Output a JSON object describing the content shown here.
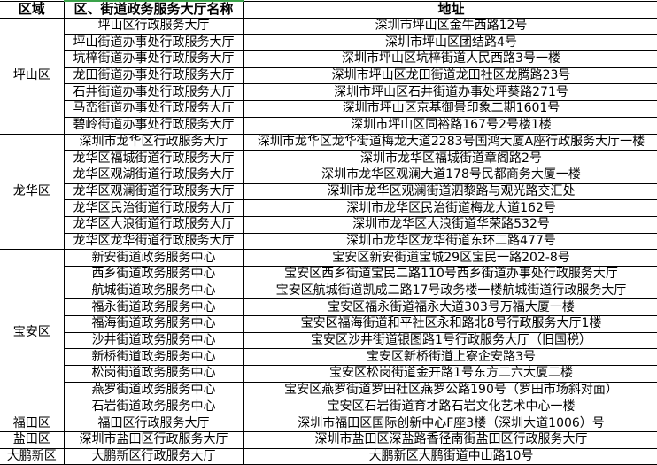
{
  "header": {
    "region": "区域",
    "name": "区、街道政务服务大厅名称",
    "address": "地址"
  },
  "groups": [
    {
      "region": "坪山区",
      "rows": [
        [
          "坪山区行政服务大厅",
          "深圳市坪山区金牛西路12号"
        ],
        [
          "坪山街道办事处行政服务大厅",
          "深圳市坪山区团结路4号"
        ],
        [
          "坑梓街道办事处行政服务大厅",
          "深圳市坪山区坑梓街道人民西路3号一楼"
        ],
        [
          "龙田街道办事处行政服务大厅",
          "深圳市坪山区龙田街道龙田社区龙腾路23号"
        ],
        [
          "石井街道办事处行政服务大厅",
          "深圳市坪山区石井街道办事处坪葵路271号"
        ],
        [
          "马峦街道办事处行政服务大厅",
          "深圳市坪山区京基御景印象二期1601号"
        ],
        [
          "碧岭街道办事处行政服务大厅",
          "深圳市坪山区同裕路167号2号楼1楼"
        ]
      ]
    },
    {
      "region": "龙华区",
      "rows": [
        [
          "深圳市龙华区行政服务大厅",
          "深圳市龙华区龙华街道梅龙大道2283号国鸿大厦A座行政服务大厅一楼"
        ],
        [
          "龙华区福城街道行政服务大厅",
          "深圳市龙华区福城街道章阁路2号"
        ],
        [
          "龙华区观湖街道行政服务大厅",
          "深圳市龙华区观澜大道178号民都商务大厦一楼"
        ],
        [
          "龙华区观澜街道行政服务大厅",
          "深圳市龙华区观澜街道泗黎路与观光路交汇处"
        ],
        [
          "龙华区民治街道行政服务大厅",
          "深圳市龙华区民治街道梅龙大道162号"
        ],
        [
          "龙华区大浪街道行政服务大厅",
          "深圳市龙华区大浪街道华荣路532号"
        ],
        [
          "龙华区龙华街道行政服务大厅",
          "深圳市龙华区龙华街道东环二路477号"
        ]
      ]
    },
    {
      "region": "宝安区",
      "rows": [
        [
          "新安街道政务服务中心",
          "宝安区新安街道宝城29区宝民一路202-8号"
        ],
        [
          "西乡街道政务服务中心",
          "宝安区西乡街道宝民二路110号西乡街道办事处行政服务大厅"
        ],
        [
          "航城街道政务服务中心",
          "宝安区航城街道凯成二路17号政务楼一楼航城街道行政服务大厅"
        ],
        [
          "福永街道政务服务中心",
          "宝安区福永街道福永大道303号万福大厦一楼"
        ],
        [
          "福海街道政务服务中心",
          "宝安区福海街道和平社区永和路北8号行政服务大厅1楼"
        ],
        [
          "沙井街道政务服务中心",
          "宝安区沙井街道银图路1号行政服务大厅（旧国税）"
        ],
        [
          "新桥街道政务服务中心",
          "宝安区新桥街道上寮企安路3号"
        ],
        [
          "松岗街道政务服务中心",
          "宝安区松岗街道金开路1号东方二六大厦二楼"
        ],
        [
          "燕罗街道政务服务中心",
          "宝安区燕罗街道罗田社区燕罗公路190号（罗田市场斜对面）"
        ],
        [
          "石岩街道政务服务中心",
          "宝安区石岩街道育才路石岩文化艺术中心一楼"
        ]
      ]
    },
    {
      "region": "福田区",
      "rows": [
        [
          "福田区行政服务大厅",
          "深圳市福田区国际创新中心F座3楼（深圳大道1006）号"
        ]
      ]
    },
    {
      "region": "盐田区",
      "rows": [
        [
          "深圳市盐田区行政服务大厅",
          "深圳市盐田区深盐路香径南街盐田区行政服务大厅"
        ]
      ]
    },
    {
      "region": "大鹏新区",
      "rows": [
        [
          "大鹏新区行政服务大厅",
          "大鹏新区大鹏街道中山路10号"
        ]
      ]
    }
  ]
}
